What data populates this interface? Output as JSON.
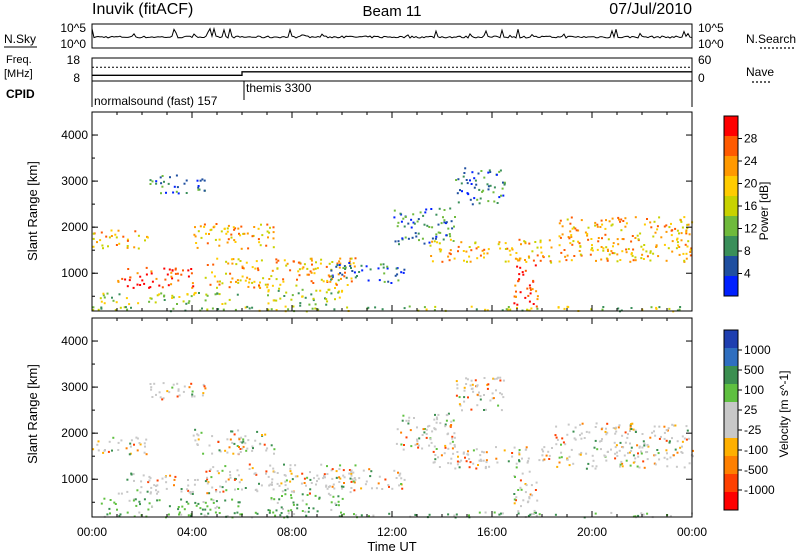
{
  "header": {
    "station": "Inuvik (fitACF)",
    "beam": "Beam 11",
    "date": "07/Jul/2010"
  },
  "chart_data": [
    {
      "type": "line",
      "panel": "noise",
      "left_label": "N.Sky",
      "right_label": "N.Search",
      "left_ticks": [
        "10^5",
        "10^0"
      ],
      "right_ticks": [
        "10^5",
        "10^0"
      ],
      "series": [
        {
          "name": "N.Sky",
          "style": "solid",
          "baseline": 1.6,
          "values_description": "spiky"
        },
        {
          "name": "N.Search",
          "style": "dotted",
          "values": []
        }
      ]
    },
    {
      "type": "line",
      "panel": "frequency",
      "left_label": "Freq.",
      "left_unit": "[MHz]",
      "right_label": "Nave",
      "left_ticks": [
        "18",
        "8"
      ],
      "right_ticks": [
        "60",
        "0"
      ],
      "series": [
        {
          "name": "Freq.",
          "style": "solid",
          "x": [
            0,
            6,
            6,
            24
          ],
          "values": [
            10.5,
            10.5,
            12.0,
            12.0
          ]
        },
        {
          "name": "Nave",
          "style": "dotted",
          "x": [
            0,
            24
          ],
          "values": [
            36,
            36
          ]
        }
      ]
    },
    {
      "type": "table",
      "panel": "cpid",
      "label": "CPID",
      "segments": [
        {
          "text": "normalsound (fast) 157",
          "start": 0,
          "end": 6
        },
        {
          "text": "themis 3300",
          "start": 6,
          "end": 24
        }
      ]
    },
    {
      "type": "heatmap",
      "panel": "power",
      "ylabel": "Slant Range [km]",
      "yticks": [
        1000,
        2000,
        3000,
        4000
      ],
      "ylim": [
        180,
        4500
      ],
      "xlim": [
        0,
        24
      ],
      "colorbar": {
        "label": "Power [dB]",
        "ticks": [
          "28",
          "24",
          "20",
          "16",
          "12",
          "8",
          "4"
        ],
        "colors": [
          "#ff0000",
          "#ff5a00",
          "#ff9900",
          "#ffcc00",
          "#c8d200",
          "#6fba3c",
          "#3a8f5a",
          "#1f4fa0",
          "#0020ff"
        ]
      }
    },
    {
      "type": "heatmap",
      "panel": "velocity",
      "ylabel": "Slant Range [km]",
      "yticks": [
        1000,
        2000,
        3000,
        4000
      ],
      "ylim": [
        180,
        4500
      ],
      "xlim": [
        0,
        24
      ],
      "xlabel": "Time UT",
      "xticks": [
        "00:00",
        "04:00",
        "08:00",
        "12:00",
        "16:00",
        "20:00",
        "00:00"
      ],
      "colorbar": {
        "label": "Velocity [m s^-1]",
        "ticks": [
          "1000",
          "500",
          "100",
          "25",
          "-25",
          "-100",
          "-500",
          "-1000"
        ],
        "colors": [
          "#1f3fb0",
          "#2f6fc0",
          "#3b8f50",
          "#5fc040",
          "#c8c8c8",
          "#c8c8c8",
          "#ffb000",
          "#ff8000",
          "#ff4000",
          "#ff0000"
        ]
      }
    }
  ]
}
